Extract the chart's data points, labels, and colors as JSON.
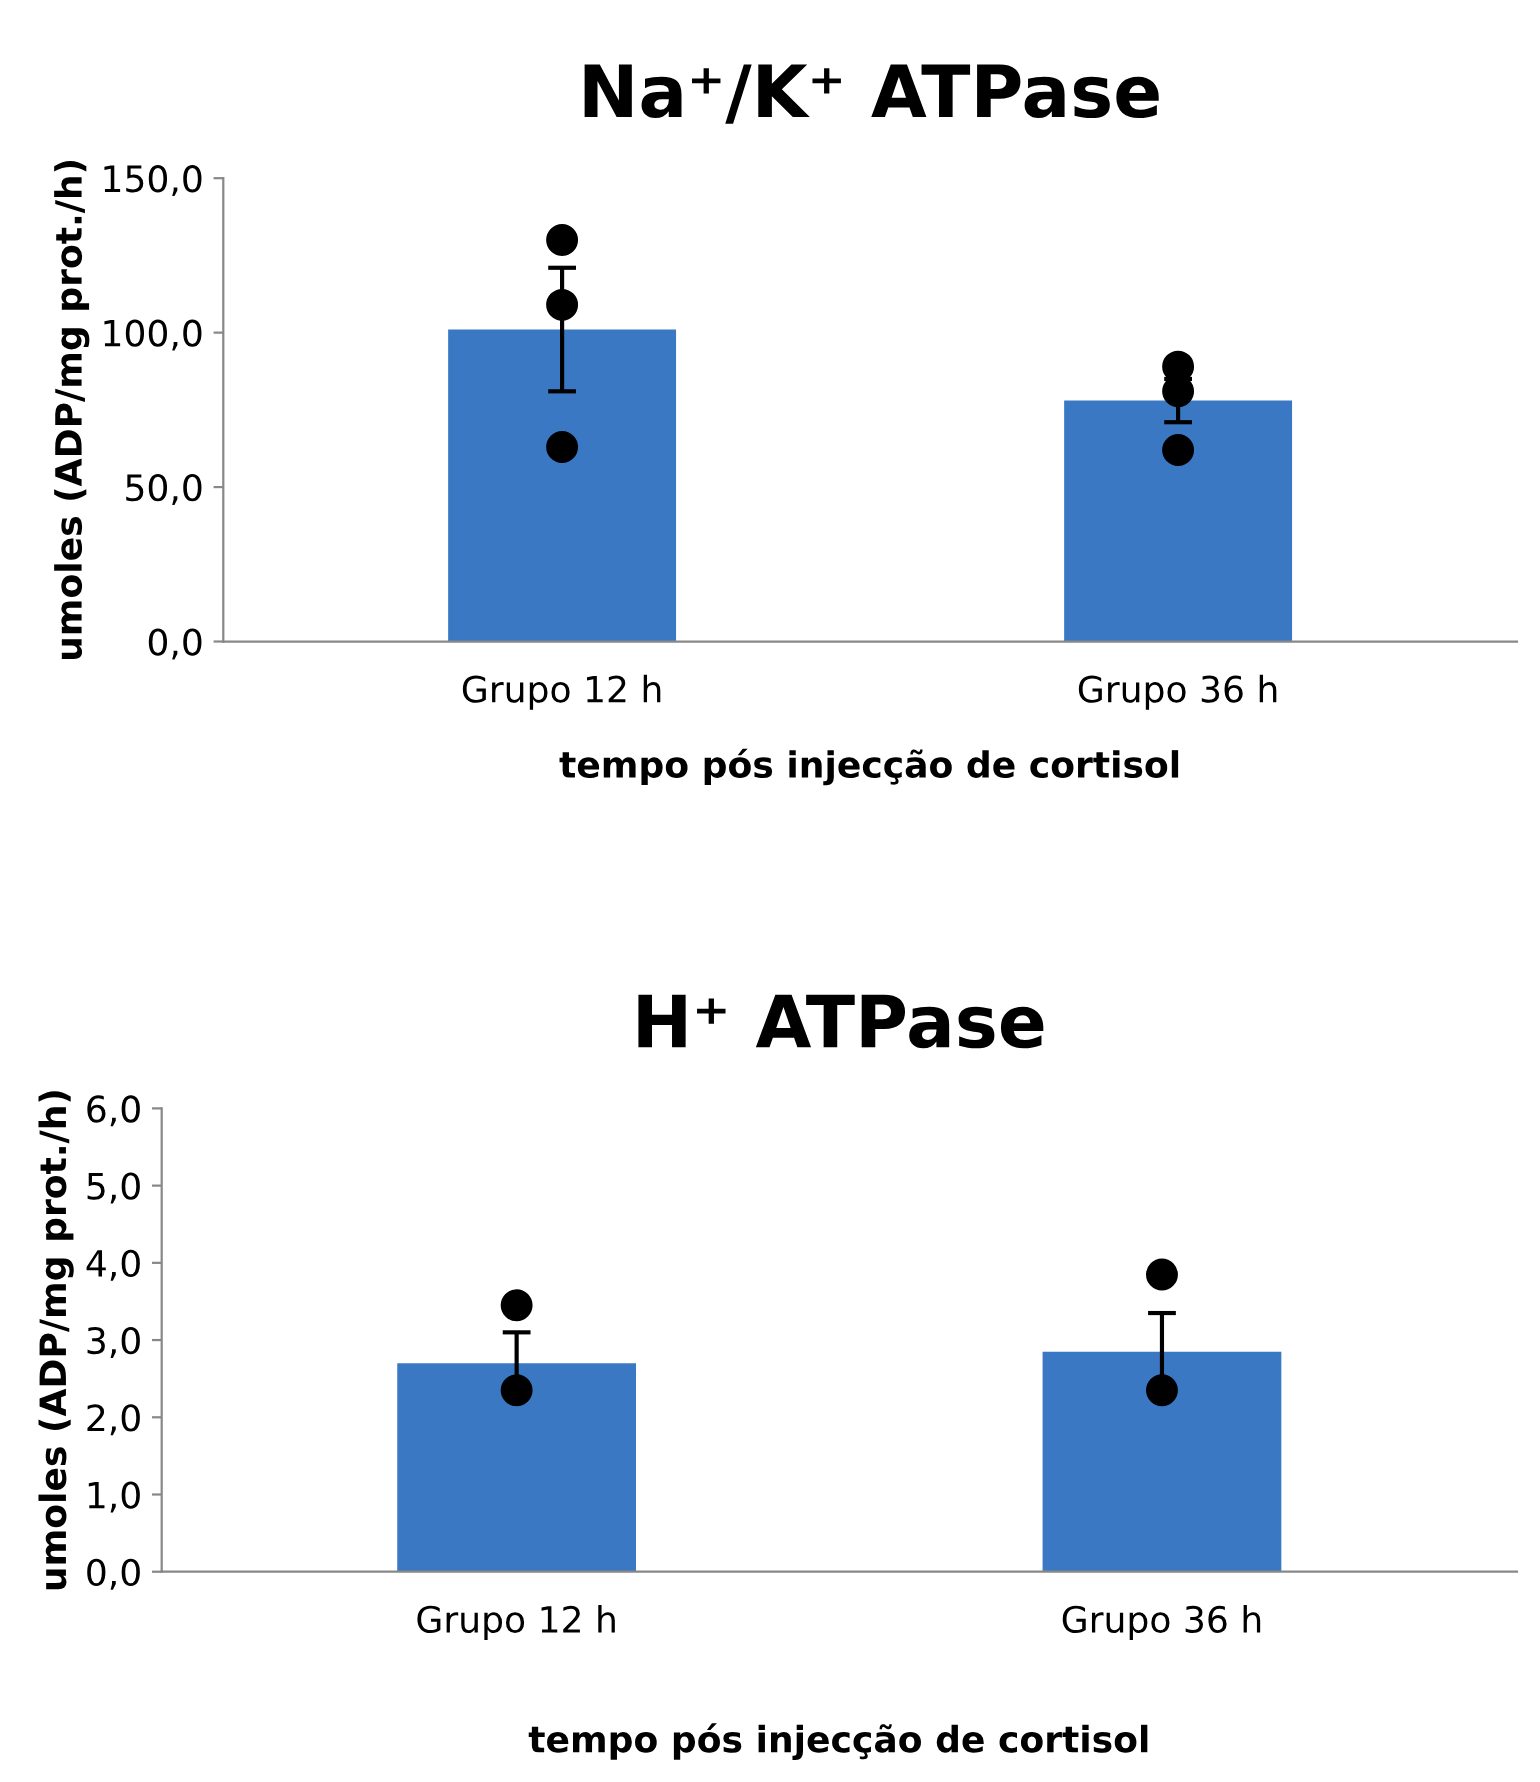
{
  "chart_data": [
    {
      "type": "bar",
      "title": "Na⁺/K⁺ ATPase",
      "xlabel": "tempo pós injecção de cortisol",
      "ylabel": "umoles (ADP/mg prot./h)",
      "categories": [
        "Grupo 12 h",
        "Grupo 36 h"
      ],
      "ylim": [
        0,
        150
      ],
      "yticks": [
        {
          "value": 0,
          "label": "0,0"
        },
        {
          "value": 50,
          "label": "50,0"
        },
        {
          "value": 100,
          "label": "100,0"
        },
        {
          "value": 150,
          "label": "150,0"
        }
      ],
      "grid": false,
      "legend": false,
      "series": [
        {
          "color": "#3a78c4",
          "values": [
            101,
            78
          ],
          "errors": [
            20,
            7
          ]
        },
        {
          "type": "scatter",
          "color": "#000000",
          "marker": "circle",
          "x": [
            "Grupo 12 h",
            "Grupo 12 h",
            "Grupo 12 h",
            "Grupo 36 h",
            "Grupo 36 h",
            "Grupo 36 h"
          ],
          "values": [
            130,
            109,
            63,
            89,
            81,
            62
          ]
        }
      ]
    },
    {
      "type": "bar",
      "title": "H⁺ ATPase",
      "xlabel": "tempo pós injecção de cortisol",
      "ylabel": "umoles (ADP/mg prot./h)",
      "categories": [
        "Grupo 12 h",
        "Grupo 36 h"
      ],
      "ylim": [
        0,
        6
      ],
      "yticks": [
        {
          "value": 0,
          "label": "0,0"
        },
        {
          "value": 1,
          "label": "1,0"
        },
        {
          "value": 2,
          "label": "2,0"
        },
        {
          "value": 3,
          "label": "3,0"
        },
        {
          "value": 4,
          "label": "4,0"
        },
        {
          "value": 5,
          "label": "5,0"
        },
        {
          "value": 6,
          "label": "6,0"
        }
      ],
      "grid": false,
      "legend": false,
      "series": [
        {
          "color": "#3a78c4",
          "values": [
            2.7,
            2.85
          ],
          "errors": [
            0.4,
            0.5
          ]
        },
        {
          "type": "scatter",
          "color": "#000000",
          "marker": "circle",
          "x": [
            "Grupo 12 h",
            "Grupo 12 h",
            "Grupo 36 h",
            "Grupo 36 h"
          ],
          "values": [
            3.45,
            2.35,
            3.85,
            2.35
          ]
        }
      ]
    }
  ]
}
